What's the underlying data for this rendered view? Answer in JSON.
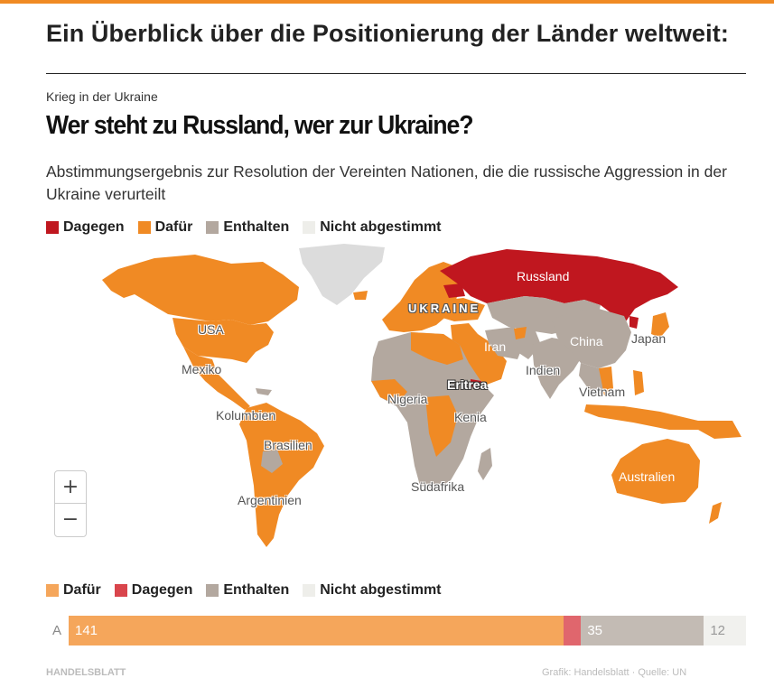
{
  "page": {
    "section_title": "Ein Überblick über die Positionierung der Länder weltweit:",
    "kicker": "Krieg in der Ukraine",
    "headline": "Wer steht zu Russland, wer zur Ukraine?",
    "subtitle": "Abstimmungsergebnis zur Resolution der Vereinten Nationen, die die russische Aggression in der Ukraine verurteilt"
  },
  "colors": {
    "dagegen": "#c0171f",
    "dafuer": "#f08a24",
    "enthalten": "#b3a89f",
    "nicht_abgestimmt": "#eeeeea",
    "no_data": "#dcdcdc",
    "accent": "#f08a24"
  },
  "legend_top": [
    {
      "label": "Dagegen",
      "color_key": "dagegen"
    },
    {
      "label": "Dafür",
      "color_key": "dafuer"
    },
    {
      "label": "Enthalten",
      "color_key": "enthalten"
    },
    {
      "label": "Nicht abgestimmt",
      "color_key": "nicht_abgestimmt"
    }
  ],
  "map": {
    "zoom_in": "+",
    "zoom_out": "−",
    "labels": {
      "usa": "USA",
      "mexiko": "Mexiko",
      "kolumbien": "Kolumbien",
      "brasilien": "Brasilien",
      "argentinien": "Argentinien",
      "russland": "Russland",
      "ukraine": "UKRAINE",
      "iran": "Iran",
      "china": "China",
      "japan": "Japan",
      "indien": "Indien",
      "vietnam": "Vietnam",
      "eritrea": "Eritrea",
      "nigeria": "Nigeria",
      "kenia": "Kenia",
      "suedafrika": "Südafrika",
      "australien": "Australien"
    }
  },
  "legend_bottom": [
    {
      "label": "Dafür",
      "color": "#f5a65b"
    },
    {
      "label": "Dagegen",
      "color": "#d9454c"
    },
    {
      "label": "Enthalten",
      "color": "#b3a89f"
    },
    {
      "label": "Nicht abgestimmt",
      "color": "#eeeeea"
    }
  ],
  "chart_data": {
    "type": "bar",
    "orientation": "horizontal-stacked",
    "row_label": "A",
    "series": [
      {
        "name": "Dafür",
        "value": 141,
        "color": "#f5a65b",
        "show_label": true,
        "label_color": "#ffffff"
      },
      {
        "name": "Dagegen",
        "value": 5,
        "color": "#e0666d",
        "show_label": false,
        "label_color": "#ffffff"
      },
      {
        "name": "Enthalten",
        "value": 35,
        "color": "#c3bbb4",
        "show_label": true,
        "label_color": "#ffffff"
      },
      {
        "name": "Nicht abgestimmt",
        "value": 12,
        "color": "#f1f1ee",
        "show_label": true,
        "label_color": "#999999"
      }
    ]
  },
  "footer": {
    "left": "HANDELSBLATT",
    "right": "Grafik: Handelsblatt · Quelle: UN"
  }
}
